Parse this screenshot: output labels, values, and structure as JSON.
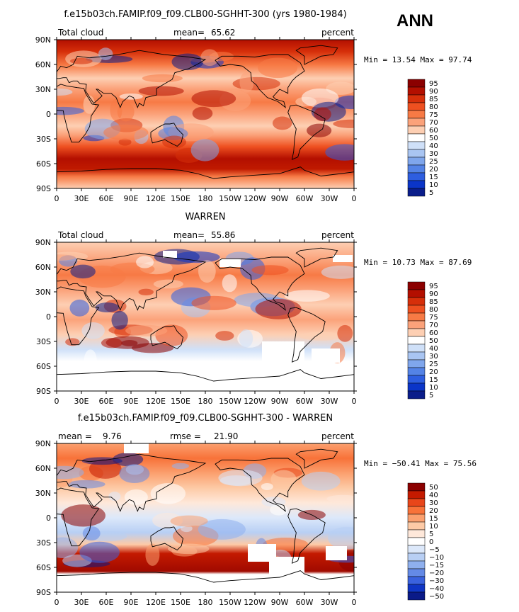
{
  "season_label": "ANN",
  "panels": [
    {
      "id": "model",
      "title": "f.e15b03ch.FAMIP.f09_f09.CLB00-SGHHT-300 (yrs 1980-1984)",
      "left_label": "Total cloud",
      "stat_label": "mean=",
      "stat_value": "65.62",
      "stat2_label": "",
      "stat2_value": "",
      "units": "percent",
      "min_label": "Min =",
      "min_value": "13.54",
      "max_label": "Max =",
      "max_value": "97.74",
      "legend_levels": [
        "95",
        "90",
        "85",
        "80",
        "75",
        "70",
        "60",
        "50",
        "40",
        "30",
        "25",
        "20",
        "15",
        "10",
        "5"
      ],
      "palette": "cloud"
    },
    {
      "id": "obs",
      "title": "WARREN",
      "left_label": "Total cloud",
      "stat_label": "mean=",
      "stat_value": "55.86",
      "stat2_label": "",
      "stat2_value": "",
      "units": "percent",
      "min_label": "Min =",
      "min_value": "10.73",
      "max_label": "Max =",
      "max_value": "87.69",
      "legend_levels": [
        "95",
        "90",
        "85",
        "80",
        "75",
        "70",
        "60",
        "50",
        "40",
        "30",
        "25",
        "20",
        "15",
        "10",
        "5"
      ],
      "palette": "cloud"
    },
    {
      "id": "diff",
      "title": "f.e15b03ch.FAMIP.f09_f09.CLB00-SGHHT-300 - WARREN",
      "left_label": "",
      "stat_label": "mean =",
      "stat_value": "9.76",
      "stat2_label": "rmse =",
      "stat2_value": "21.90",
      "units": "percent",
      "min_label": "Min =",
      "min_value": "−50.41",
      "max_label": "Max =",
      "max_value": "75.56",
      "legend_levels": [
        "50",
        "40",
        "30",
        "20",
        "15",
        "10",
        "5",
        "0",
        "−5",
        "−10",
        "−15",
        "−20",
        "−30",
        "−40",
        "−50"
      ],
      "palette": "diff"
    }
  ],
  "lat_ticks": [
    "90N",
    "60N",
    "30N",
    "0",
    "30S",
    "60S",
    "90S"
  ],
  "lon_ticks": [
    "0",
    "30E",
    "60E",
    "90E",
    "120E",
    "150E",
    "180",
    "150W",
    "120W",
    "90W",
    "60W",
    "30W",
    "0"
  ],
  "colors": {
    "cloud": [
      "#8b0000",
      "#b30f00",
      "#d62f0a",
      "#ee5020",
      "#f77a45",
      "#fba27a",
      "#fdcfb3",
      "#ffffff",
      "#cfe0f8",
      "#a9c5f2",
      "#7fa6ec",
      "#5483e6",
      "#2e5ee0",
      "#0b35c8",
      "#0a1d8a"
    ],
    "diff": [
      "#8b0000",
      "#c41a00",
      "#e8461a",
      "#f87239",
      "#fba06f",
      "#fdcaa6",
      "#fee8da",
      "#ffffff",
      "#dce8fa",
      "#b8cff4",
      "#8fb0ee",
      "#648ae6",
      "#3a62de",
      "#0f35c4",
      "#0a1a88"
    ]
  }
}
